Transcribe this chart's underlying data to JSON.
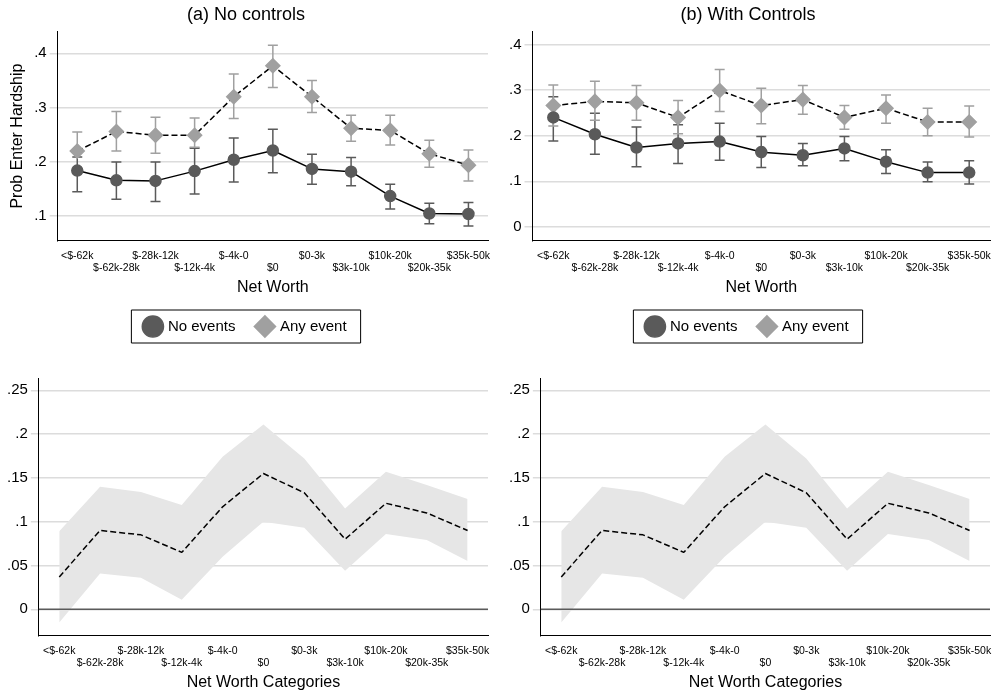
{
  "chart_data": [
    {
      "type": "line",
      "title": "(a) No controls",
      "xlabel": "Net Worth",
      "ylabel": "Prob Enter Hardship",
      "categories": [
        "<$-62k",
        "$-62k-28k",
        "$-28k-12k",
        "$-12k-4k",
        "$-4k-0",
        "$0",
        "$0-3k",
        "$3k-10k",
        "$10k-20k",
        "$20k-35k",
        "$35k-50k"
      ],
      "series": [
        {
          "name": "No events",
          "color": "#5a5a5a",
          "marker": "circle",
          "line_style": "solid",
          "values": [
            0.184,
            0.166,
            0.165,
            0.183,
            0.204,
            0.221,
            0.187,
            0.182,
            0.137,
            0.105,
            0.104
          ],
          "errors": [
            [
              0.145,
              0.209
            ],
            [
              0.131,
              0.2
            ],
            [
              0.127,
              0.2
            ],
            [
              0.141,
              0.225
            ],
            [
              0.163,
              0.244
            ],
            [
              0.18,
              0.26
            ],
            [
              0.159,
              0.214
            ],
            [
              0.156,
              0.208
            ],
            [
              0.113,
              0.159
            ],
            [
              0.086,
              0.124
            ],
            [
              0.082,
              0.125
            ]
          ]
        },
        {
          "name": "Any event",
          "color": "#a0a0a0",
          "marker": "diamond",
          "line_style": "dashed",
          "values": [
            0.22,
            0.256,
            0.249,
            0.249,
            0.32,
            0.377,
            0.32,
            0.262,
            0.258,
            0.215,
            0.194
          ],
          "errors": [
            [
              0.22,
              0.255
            ],
            [
              0.22,
              0.293
            ],
            [
              0.216,
              0.282
            ],
            [
              0.227,
              0.281
            ],
            [
              0.28,
              0.362
            ],
            [
              0.337,
              0.415
            ],
            [
              0.291,
              0.35
            ],
            [
              0.238,
              0.286
            ],
            [
              0.231,
              0.286
            ],
            [
              0.19,
              0.24
            ],
            [
              0.165,
              0.222
            ]
          ]
        }
      ],
      "ylim": [
        0.055,
        0.44
      ],
      "yticks": [
        {
          "value": 0.1,
          "label": ".1"
        },
        {
          "value": 0.2,
          "label": ".2"
        },
        {
          "value": 0.3,
          "label": ".3"
        },
        {
          "value": 0.4,
          "label": ".4"
        }
      ],
      "grid": "y",
      "legend": "bottom"
    },
    {
      "type": "line",
      "title": "(b) With Controls",
      "xlabel": "Net Worth",
      "categories": [
        "<$-62k",
        "$-62k-28k",
        "$-28k-12k",
        "$-12k-4k",
        "$-4k-0",
        "$0",
        "$0-3k",
        "$3k-10k",
        "$10k-20k",
        "$20k-35k",
        "$35k-50k"
      ],
      "series": [
        {
          "name": "No events",
          "color": "#5a5a5a",
          "marker": "circle",
          "line_style": "solid",
          "values": [
            0.24,
            0.203,
            0.174,
            0.183,
            0.187,
            0.164,
            0.157,
            0.172,
            0.143,
            0.119,
            0.119
          ],
          "errors": [
            [
              0.188,
              0.285
            ],
            [
              0.159,
              0.249
            ],
            [
              0.132,
              0.219
            ],
            [
              0.139,
              0.224
            ],
            [
              0.146,
              0.227
            ],
            [
              0.13,
              0.198
            ],
            [
              0.134,
              0.183
            ],
            [
              0.145,
              0.198
            ],
            [
              0.117,
              0.169
            ],
            [
              0.099,
              0.142
            ],
            [
              0.094,
              0.145
            ]
          ]
        },
        {
          "name": "Any event",
          "color": "#a0a0a0",
          "marker": "diamond",
          "line_style": "dashed",
          "values": [
            0.266,
            0.275,
            0.272,
            0.24,
            0.299,
            0.266,
            0.279,
            0.24,
            0.26,
            0.23,
            0.23
          ],
          "errors": [
            [
              0.221,
              0.311
            ],
            [
              0.234,
              0.319
            ],
            [
              0.234,
              0.31
            ],
            [
              0.204,
              0.277
            ],
            [
              0.253,
              0.345
            ],
            [
              0.226,
              0.304
            ],
            [
              0.247,
              0.31
            ],
            [
              0.214,
              0.266
            ],
            [
              0.227,
              0.289
            ],
            [
              0.2,
              0.26
            ],
            [
              0.197,
              0.265
            ]
          ]
        }
      ],
      "ylim": [
        -0.03,
        0.428
      ],
      "yticks": [
        {
          "value": 0,
          "label": "0"
        },
        {
          "value": 0.1,
          "label": ".1"
        },
        {
          "value": 0.2,
          "label": ".2"
        },
        {
          "value": 0.3,
          "label": ".3"
        },
        {
          "value": 0.4,
          "label": ".4"
        }
      ],
      "grid": "y",
      "legend": "bottom"
    },
    {
      "type": "line",
      "xlabel": "Net Worth Categories",
      "categories": [
        "<$-62k",
        "$-62k-28k",
        "$-28k-12k",
        "$-12k-4k",
        "$-4k-0",
        "$0",
        "$0-3k",
        "$3k-10k",
        "$10k-20k",
        "$20k-35k",
        "$35k-50k"
      ],
      "series": [
        {
          "color": "#000000",
          "marker": "none",
          "line_style": "dashed",
          "values": [
            0.037,
            0.09,
            0.085,
            0.065,
            0.117,
            0.155,
            0.133,
            0.08,
            0.121,
            0.11,
            0.09
          ],
          "lower": [
            -0.015,
            0.041,
            0.036,
            0.011,
            0.06,
            0.1,
            0.093,
            0.044,
            0.086,
            0.079,
            0.055
          ],
          "upper": [
            0.089,
            0.14,
            0.134,
            0.119,
            0.174,
            0.211,
            0.172,
            0.115,
            0.157,
            0.142,
            0.126
          ]
        }
      ],
      "ylim": [
        -0.03,
        0.264
      ],
      "yticks": [
        {
          "value": 0,
          "label": "0"
        },
        {
          "value": 0.05,
          "label": ".05"
        },
        {
          "value": 0.1,
          "label": ".1"
        },
        {
          "value": 0.15,
          "label": ".15"
        },
        {
          "value": 0.2,
          "label": ".2"
        },
        {
          "value": 0.25,
          "label": ".25"
        }
      ],
      "grid": "y",
      "ref_lines": [
        {
          "axis": "y",
          "value": 0,
          "color": "#5a5a5a"
        }
      ]
    },
    {
      "type": "line",
      "xlabel": "Net Worth Categories",
      "categories": [
        "<$-62k",
        "$-62k-28k",
        "$-28k-12k",
        "$-12k-4k",
        "$-4k-0",
        "$0",
        "$0-3k",
        "$3k-10k",
        "$10k-20k",
        "$20k-35k",
        "$35k-50k"
      ],
      "series": [
        {
          "color": "#000000",
          "marker": "none",
          "line_style": "dashed",
          "values": [
            0.037,
            0.09,
            0.085,
            0.065,
            0.117,
            0.155,
            0.133,
            0.08,
            0.121,
            0.11,
            0.09
          ],
          "lower": [
            -0.015,
            0.041,
            0.036,
            0.011,
            0.06,
            0.1,
            0.093,
            0.044,
            0.086,
            0.079,
            0.055
          ],
          "upper": [
            0.089,
            0.14,
            0.134,
            0.119,
            0.174,
            0.211,
            0.172,
            0.115,
            0.157,
            0.142,
            0.126
          ]
        }
      ],
      "ylim": [
        -0.03,
        0.264
      ],
      "yticks": [
        {
          "value": 0,
          "label": "0"
        },
        {
          "value": 0.05,
          "label": ".05"
        },
        {
          "value": 0.1,
          "label": ".1"
        },
        {
          "value": 0.15,
          "label": ".15"
        },
        {
          "value": 0.2,
          "label": ".2"
        },
        {
          "value": 0.25,
          "label": ".25"
        }
      ],
      "grid": "y",
      "ref_lines": [
        {
          "axis": "y",
          "value": 0,
          "color": "#5a5a5a"
        }
      ]
    }
  ]
}
